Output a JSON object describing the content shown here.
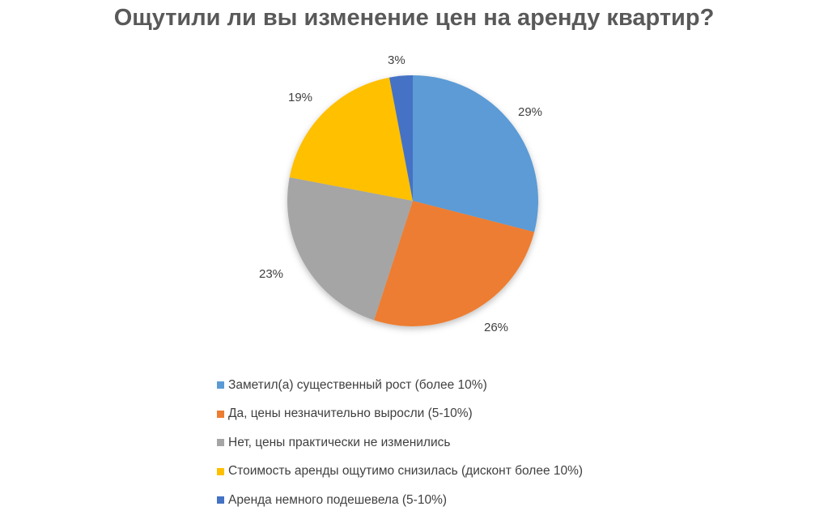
{
  "title": "Ощутили ли вы изменение цен на аренду квартир?",
  "chart_data": {
    "type": "pie",
    "title": "Ощутили ли вы изменение цен на аренду квартир?",
    "categories": [
      "Заметил(а) существенный рост (более 10%)",
      "Да, цены незначительно выросли (5-10%)",
      "Нет, цены практически не изменились",
      "Стоимость аренды ощутимо снизилась (дисконт более 10%)",
      "Аренда немного подешевела (5-10%)"
    ],
    "values": [
      29,
      26,
      23,
      19,
      3
    ],
    "labels": [
      "29%",
      "26%",
      "23%",
      "19%",
      "3%"
    ],
    "colors": [
      "#5B9BD5",
      "#ED7D31",
      "#A5A5A5",
      "#FFC000",
      "#4472C4"
    ],
    "legend_position": "bottom",
    "start_angle": "12 o'clock, clockwise"
  },
  "legend": [
    {
      "label": "Заметил(а) существенный рост (более 10%)",
      "color": "#5B9BD5"
    },
    {
      "label": "Да, цены незначительно выросли (5-10%)",
      "color": "#ED7D31"
    },
    {
      "label": "Нет, цены практически не изменились",
      "color": "#A5A5A5"
    },
    {
      "label": "Стоимость аренды ощутимо снизилась (дисконт более 10%)",
      "color": "#FFC000"
    },
    {
      "label": "Аренда немного подешевела (5-10%)",
      "color": "#4472C4"
    }
  ]
}
